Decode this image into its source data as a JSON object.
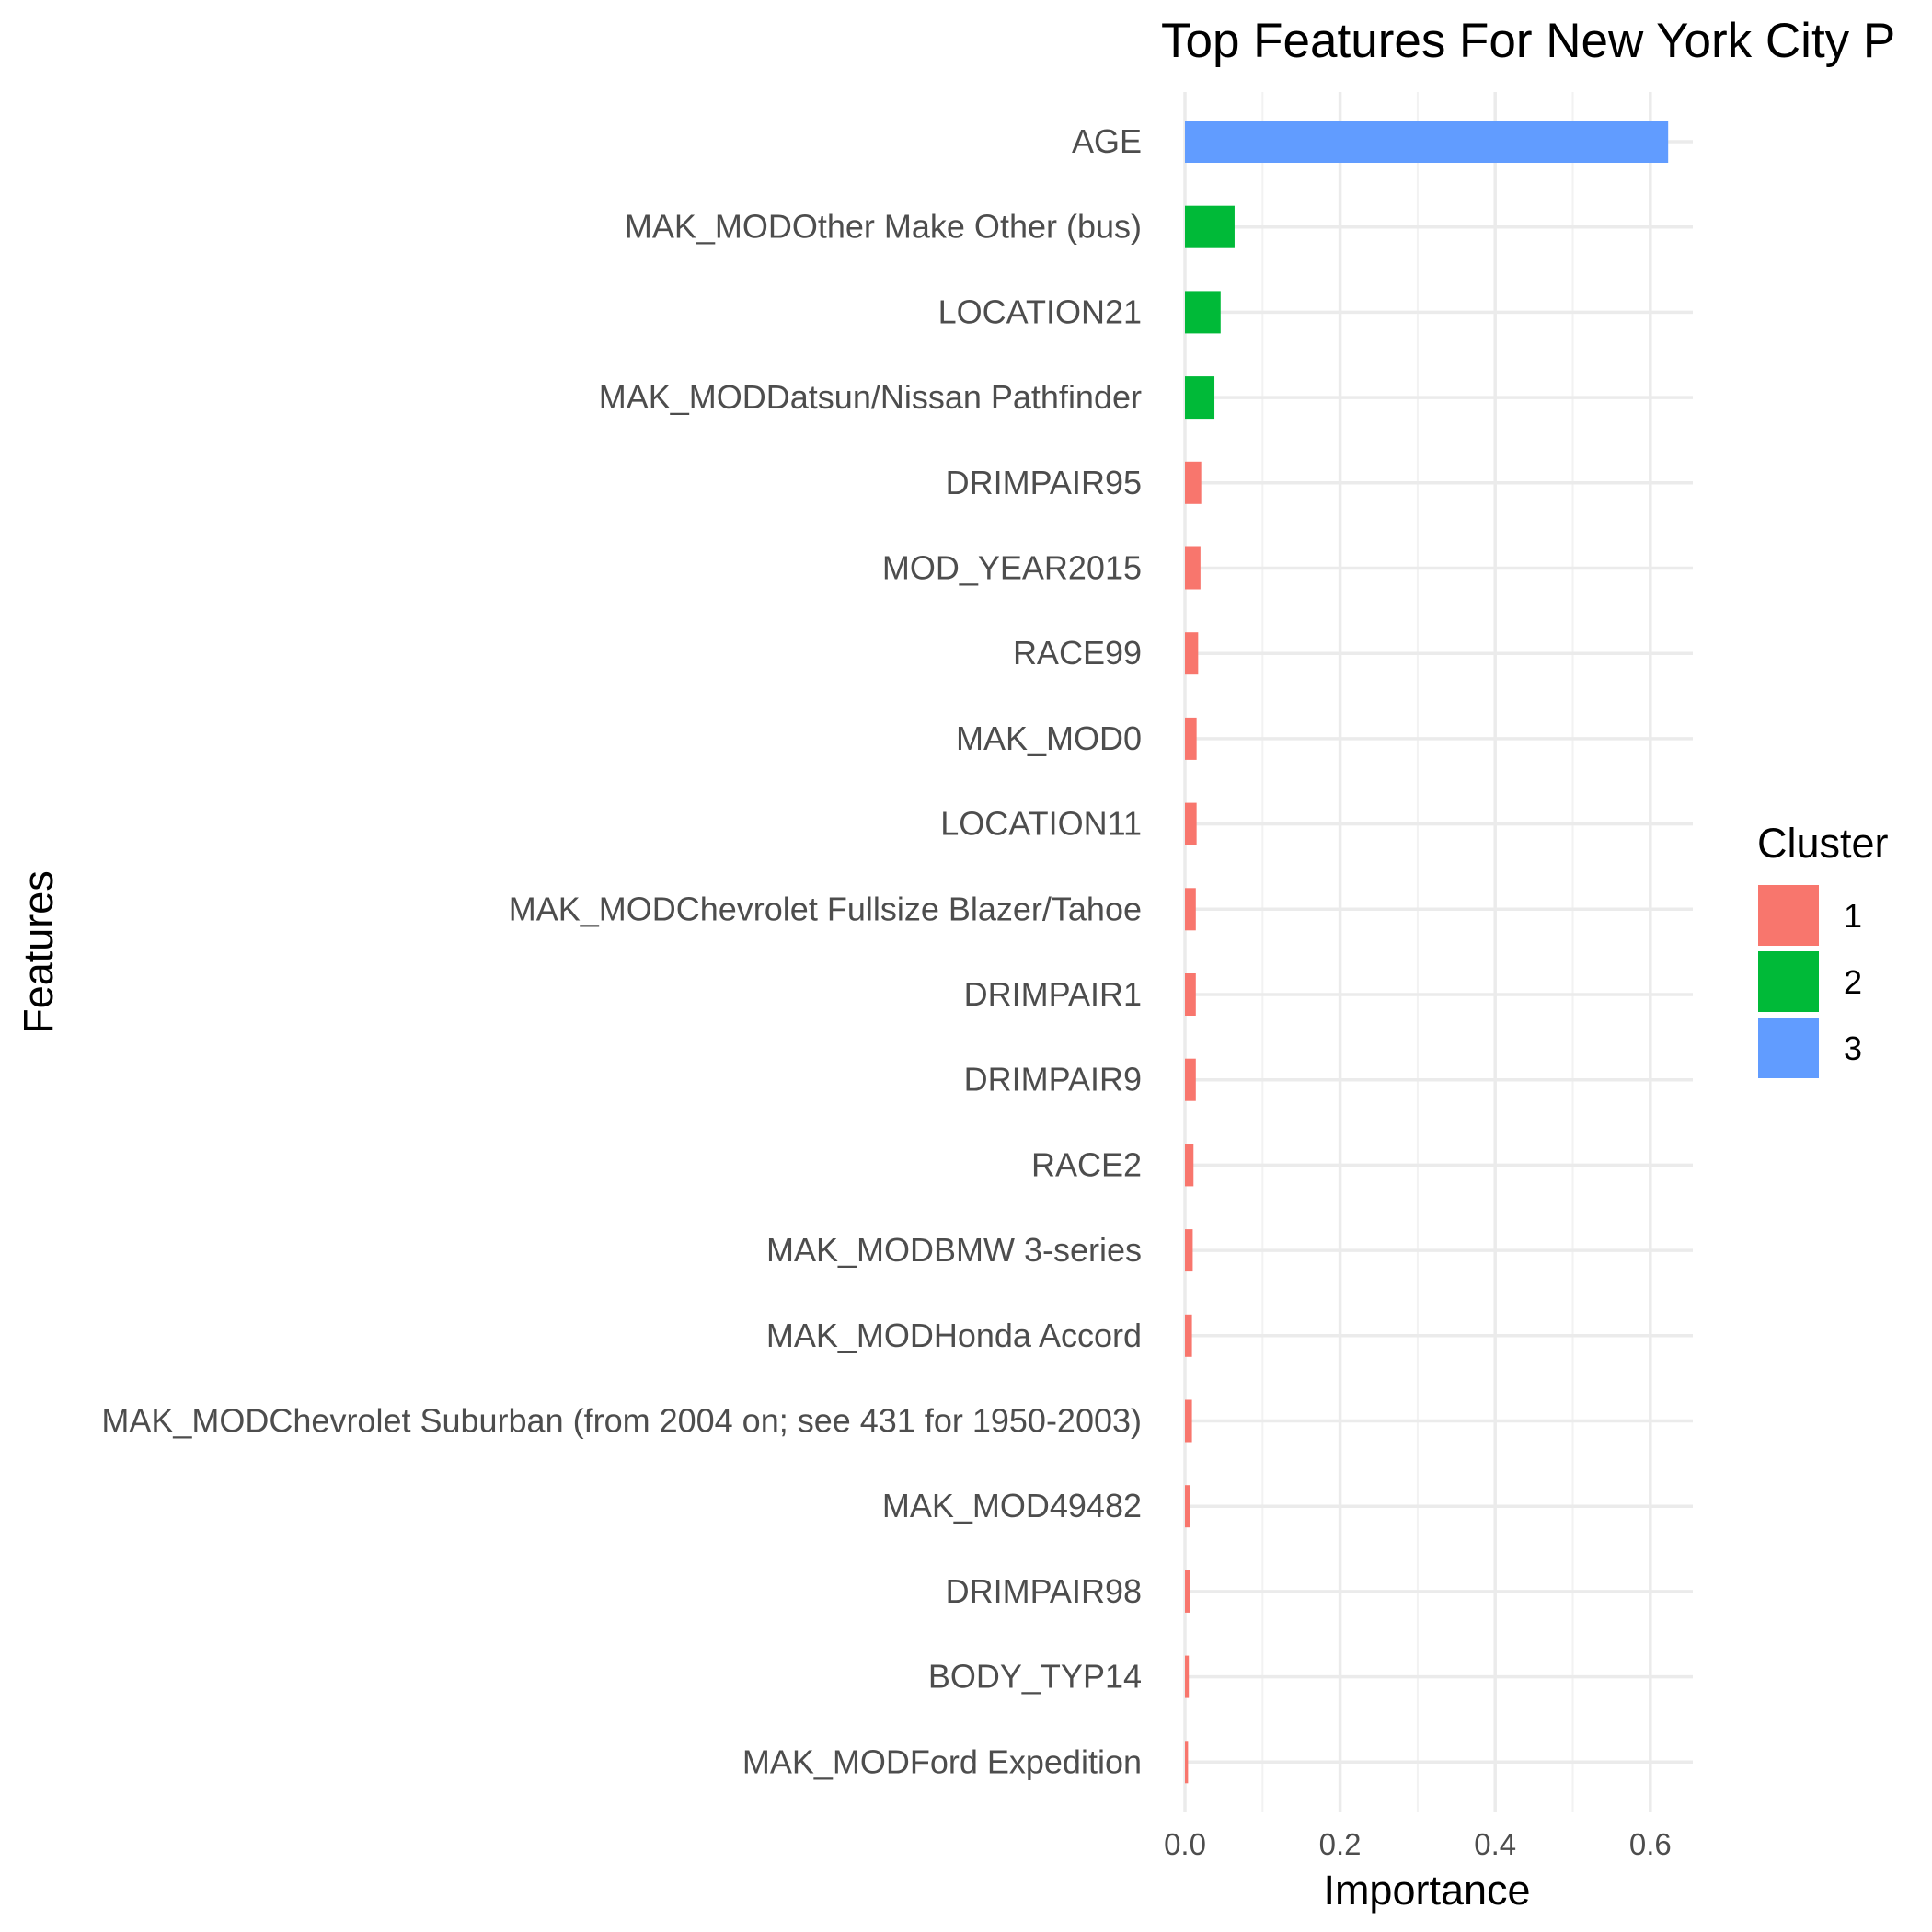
{
  "chart_data": {
    "type": "bar",
    "orientation": "horizontal",
    "title": "Top Features For New York City P",
    "xlabel": "Importance",
    "ylabel": "Features",
    "xlim": [
      0,
      0.65
    ],
    "x_ticks": [
      "0.0",
      "0.2",
      "0.4",
      "0.6"
    ],
    "grid": true,
    "legend_position": "right",
    "legend_title": "Cluster",
    "clusters": [
      {
        "name": "1",
        "color": "#F8766D"
      },
      {
        "name": "2",
        "color": "#00BA38"
      },
      {
        "name": "3",
        "color": "#619CFF"
      }
    ],
    "categories": [
      "AGE",
      "MAK_MODOther Make Other (bus)",
      "LOCATION21",
      "MAK_MODDatsun/Nissan Pathfinder",
      "DRIMPAIR95",
      "MOD_YEAR2015",
      "RACE99",
      "MAK_MOD0",
      "LOCATION11",
      "MAK_MODChevrolet Fullsize Blazer/Tahoe",
      "DRIMPAIR1",
      "DRIMPAIR9",
      "RACE2",
      "MAK_MODBMW 3-series",
      "MAK_MODHonda Accord",
      "MAK_MODChevrolet Suburban (from 2004 on; see 431 for 1950-2003)",
      "MAK_MOD49482",
      "DRIMPAIR98",
      "BODY_TYP14",
      "MAK_MODFord Expedition"
    ],
    "values": [
      0.623,
      0.064,
      0.046,
      0.038,
      0.021,
      0.02,
      0.017,
      0.015,
      0.015,
      0.014,
      0.014,
      0.014,
      0.011,
      0.01,
      0.009,
      0.009,
      0.006,
      0.006,
      0.005,
      0.004
    ],
    "cluster": [
      "3",
      "2",
      "2",
      "2",
      "1",
      "1",
      "1",
      "1",
      "1",
      "1",
      "1",
      "1",
      "1",
      "1",
      "1",
      "1",
      "1",
      "1",
      "1",
      "1"
    ]
  }
}
